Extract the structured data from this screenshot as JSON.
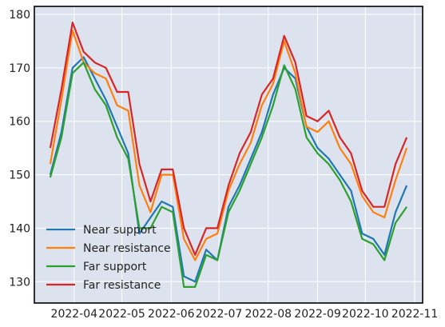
{
  "chart_data": {
    "type": "line",
    "title": "",
    "xlabel": "",
    "ylabel": "",
    "xlim": [
      "2022-03-07",
      "2022-11-06"
    ],
    "ylim": [
      126.0,
      181.5
    ],
    "grid": true,
    "legend_position": "lower-left",
    "background": "#dde3ee",
    "x_ticks": [
      "2022-04-01",
      "2022-05-01",
      "2022-06-01",
      "2022-07-01",
      "2022-08-01",
      "2022-09-01",
      "2022-10-01",
      "2022-11-01"
    ],
    "x_tick_labels": [
      "2022-04",
      "2022-05",
      "2022-06",
      "2022-07",
      "2022-08",
      "2022-09",
      "2022-10",
      "2022-11"
    ],
    "y_ticks": [
      130,
      140,
      150,
      160,
      170,
      180
    ],
    "y_tick_labels": [
      "130",
      "140",
      "150",
      "160",
      "170",
      "180"
    ],
    "x": [
      "2022-03-17",
      "2022-03-24",
      "2022-03-31",
      "2022-04-07",
      "2022-04-14",
      "2022-04-21",
      "2022-04-28",
      "2022-05-05",
      "2022-05-12",
      "2022-05-19",
      "2022-05-26",
      "2022-06-02",
      "2022-06-09",
      "2022-06-16",
      "2022-06-23",
      "2022-06-30",
      "2022-07-07",
      "2022-07-14",
      "2022-07-21",
      "2022-07-28",
      "2022-08-04",
      "2022-08-11",
      "2022-08-18",
      "2022-08-25",
      "2022-09-01",
      "2022-09-08",
      "2022-09-15",
      "2022-09-22",
      "2022-09-29",
      "2022-10-06",
      "2022-10-13",
      "2022-10-20",
      "2022-10-27"
    ],
    "series": [
      {
        "name": "Near support",
        "color": "#1f77b4",
        "values": [
          150.0,
          158.0,
          170.0,
          172.0,
          168.0,
          164.0,
          159.0,
          154.0,
          139.0,
          142.0,
          145.0,
          144.0,
          131.0,
          130.0,
          136.0,
          134.0,
          144.0,
          148.0,
          153.0,
          158.0,
          165.0,
          170.0,
          168.0,
          159.0,
          155.0,
          153.0,
          150.0,
          147.0,
          139.0,
          138.0,
          135.0,
          143.0,
          148.0
        ]
      },
      {
        "name": "Near resistance",
        "color": "#ff7f0e",
        "values": [
          152.0,
          164.0,
          177.0,
          171.0,
          169.0,
          168.0,
          163.0,
          162.0,
          148.0,
          143.0,
          150.0,
          150.0,
          138.0,
          134.0,
          138.0,
          139.0,
          147.0,
          152.0,
          156.0,
          163.0,
          167.0,
          175.0,
          169.0,
          159.0,
          158.0,
          160.0,
          155.0,
          152.0,
          146.0,
          143.0,
          142.0,
          149.0,
          155.0
        ]
      },
      {
        "name": "Far support",
        "color": "#2ca02c",
        "values": [
          149.5,
          157.0,
          169.0,
          171.0,
          166.0,
          163.0,
          157.0,
          153.0,
          140.0,
          140.0,
          144.0,
          143.0,
          129.0,
          129.0,
          135.0,
          134.0,
          143.0,
          147.0,
          152.0,
          157.0,
          163.0,
          170.5,
          166.0,
          157.0,
          154.0,
          152.0,
          149.0,
          145.0,
          138.0,
          137.0,
          134.0,
          141.0,
          144.0
        ]
      },
      {
        "name": "Far resistance",
        "color": "#d62728",
        "values": [
          155.0,
          166.0,
          178.5,
          173.0,
          171.0,
          170.0,
          165.5,
          165.5,
          152.0,
          145.0,
          151.0,
          151.0,
          140.0,
          135.0,
          140.0,
          140.0,
          148.0,
          154.0,
          158.0,
          165.0,
          168.0,
          176.0,
          171.0,
          161.0,
          160.0,
          162.0,
          157.0,
          154.0,
          147.0,
          144.0,
          144.0,
          152.0,
          157.0
        ]
      }
    ]
  }
}
